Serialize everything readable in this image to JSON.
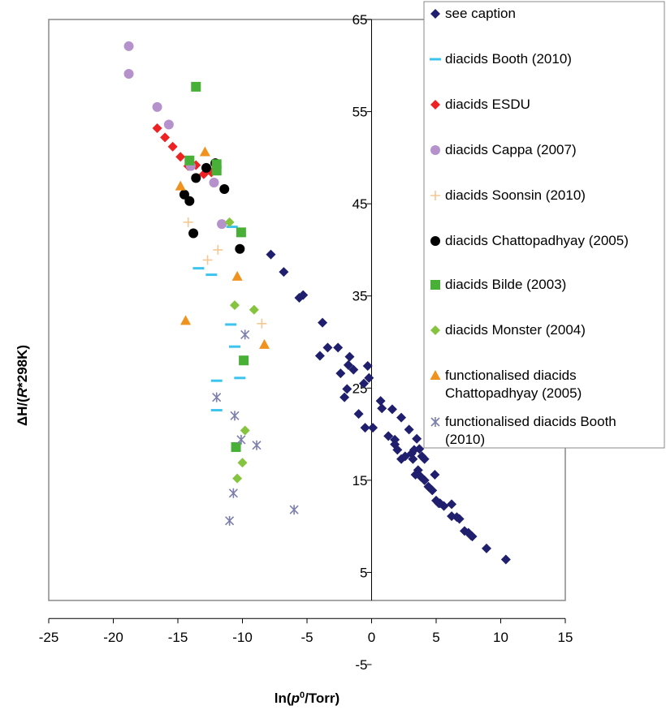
{
  "chart_data": {
    "type": "scatter",
    "xlabel": {
      "pre": "ln(",
      "italic": "p",
      "sup": "0",
      "post": "/Torr)"
    },
    "ylabel": {
      "pre": "ΔH/(",
      "italic": "R",
      "post": "*298K)"
    },
    "xlim": [
      -25,
      15
    ],
    "ylim": [
      -5,
      65
    ],
    "x_ticks": [
      -25,
      -20,
      -15,
      -10,
      -5,
      0,
      5,
      10,
      15
    ],
    "y_ticks": [
      -5,
      5,
      15,
      25,
      35,
      45,
      55,
      65
    ],
    "grid": false,
    "legend_position": "right",
    "series": [
      {
        "name": "see caption",
        "marker": "diamond",
        "color": "#1f1f6e",
        "points": [
          [
            -7.8,
            39.5
          ],
          [
            -6.8,
            37.6
          ],
          [
            -5.6,
            34.8
          ],
          [
            -5.3,
            35.1
          ],
          [
            -3.8,
            32.1
          ],
          [
            -4.0,
            28.5
          ],
          [
            -3.4,
            29.4
          ],
          [
            -2.6,
            29.4
          ],
          [
            -1.7,
            28.4
          ],
          [
            -1.8,
            27.5
          ],
          [
            -1.4,
            27.0
          ],
          [
            -2.4,
            26.6
          ],
          [
            -1.9,
            24.9
          ],
          [
            -2.1,
            24.0
          ],
          [
            -0.2,
            26.1
          ],
          [
            -0.6,
            25.5
          ],
          [
            -1.0,
            22.2
          ],
          [
            -0.5,
            20.7
          ],
          [
            0.1,
            20.7
          ],
          [
            0.7,
            23.6
          ],
          [
            0.8,
            22.8
          ],
          [
            1.3,
            19.8
          ],
          [
            1.8,
            19.4
          ],
          [
            1.8,
            18.9
          ],
          [
            1.6,
            22.7
          ],
          [
            2.3,
            21.8
          ],
          [
            2.0,
            18.3
          ],
          [
            2.3,
            17.3
          ],
          [
            2.6,
            17.6
          ],
          [
            3.1,
            17.9
          ],
          [
            3.2,
            17.3
          ],
          [
            3.3,
            18.3
          ],
          [
            2.9,
            20.5
          ],
          [
            3.5,
            19.5
          ],
          [
            3.7,
            18.4
          ],
          [
            3.9,
            17.6
          ],
          [
            4.1,
            17.3
          ],
          [
            3.6,
            16.1
          ],
          [
            3.4,
            15.6
          ],
          [
            3.8,
            15.4
          ],
          [
            4.1,
            15.0
          ],
          [
            4.4,
            14.3
          ],
          [
            4.9,
            15.6
          ],
          [
            4.7,
            13.9
          ],
          [
            5.0,
            12.8
          ],
          [
            5.3,
            12.5
          ],
          [
            5.6,
            12.2
          ],
          [
            5.2,
            12.5
          ],
          [
            6.2,
            12.4
          ],
          [
            6.2,
            11.1
          ],
          [
            6.6,
            11.0
          ],
          [
            6.8,
            10.8
          ],
          [
            7.2,
            9.5
          ],
          [
            7.5,
            9.3
          ],
          [
            7.7,
            9.0
          ],
          [
            7.8,
            8.9
          ],
          [
            8.9,
            7.6
          ],
          [
            10.4,
            6.4
          ],
          [
            -0.3,
            27.4
          ]
        ]
      },
      {
        "name": "diacids Booth (2010)",
        "marker": "dash",
        "color": "#3cc4ee",
        "points": [
          [
            -13.4,
            38.0
          ],
          [
            -12.4,
            37.3
          ],
          [
            -10.9,
            31.9
          ],
          [
            -10.6,
            29.5
          ],
          [
            -10.2,
            26.1
          ],
          [
            -12.0,
            25.8
          ],
          [
            -12.0,
            22.6
          ],
          [
            -10.8,
            42.5
          ]
        ]
      },
      {
        "name": "diacids ESDU",
        "marker": "diamond",
        "color": "#ee2222",
        "points": [
          [
            -16.6,
            53.2
          ],
          [
            -16.0,
            52.2
          ],
          [
            -15.4,
            51.2
          ],
          [
            -14.8,
            50.1
          ],
          [
            -14.2,
            49.1
          ],
          [
            -13.6,
            49.2
          ],
          [
            -13.0,
            48.2
          ],
          [
            -12.4,
            48.4
          ]
        ]
      },
      {
        "name": "diacids Cappa (2007)",
        "marker": "circle",
        "color": "#b592cc",
        "points": [
          [
            -18.8,
            62.1
          ],
          [
            -18.8,
            59.1
          ],
          [
            -16.6,
            55.5
          ],
          [
            -15.7,
            53.6
          ],
          [
            -14.0,
            49.1
          ],
          [
            -12.2,
            47.3
          ],
          [
            -11.6,
            42.8
          ]
        ]
      },
      {
        "name": "diacids Soonsin (2010)",
        "marker": "plus",
        "color": "#f5c793",
        "points": [
          [
            -14.2,
            43.0
          ],
          [
            -12.7,
            38.9
          ],
          [
            -11.9,
            40.0
          ],
          [
            -8.5,
            32.0
          ]
        ]
      },
      {
        "name": "diacids Chattopadhyay (2005)",
        "marker": "circle",
        "color": "#000000",
        "points": [
          [
            -14.5,
            46.0
          ],
          [
            -14.1,
            45.3
          ],
          [
            -13.8,
            41.8
          ],
          [
            -13.6,
            47.8
          ],
          [
            -12.8,
            48.9
          ],
          [
            -12.1,
            49.4
          ],
          [
            -11.4,
            46.6
          ],
          [
            -10.2,
            40.1
          ]
        ]
      },
      {
        "name": "diacids Bilde (2003)",
        "marker": "square",
        "color": "#49b037",
        "points": [
          [
            -13.6,
            57.7
          ],
          [
            -14.1,
            49.7
          ],
          [
            -12.0,
            49.3
          ],
          [
            -12.0,
            48.6
          ],
          [
            -10.1,
            41.9
          ],
          [
            -9.9,
            28.0
          ],
          [
            -10.5,
            18.6
          ]
        ]
      },
      {
        "name": "diacids Monster (2004)",
        "marker": "diamond",
        "color": "#86c43f",
        "points": [
          [
            -11.0,
            43.0
          ],
          [
            -10.6,
            34.0
          ],
          [
            -9.1,
            33.5
          ],
          [
            -9.8,
            20.4
          ],
          [
            -10.0,
            16.9
          ],
          [
            -10.4,
            15.2
          ]
        ]
      },
      {
        "name": "functionalised diacids\nChattopadhyay (2005)",
        "marker": "triangle",
        "color": "#f0921e",
        "points": [
          [
            -14.8,
            46.9
          ],
          [
            -12.9,
            50.6
          ],
          [
            -10.4,
            37.1
          ],
          [
            -14.4,
            32.3
          ],
          [
            -8.3,
            29.7
          ]
        ]
      },
      {
        "name": "functionalised diacids Booth\n(2010)",
        "marker": "star",
        "color": "#7c7fac",
        "points": [
          [
            -12.0,
            24.0
          ],
          [
            -10.6,
            22.0
          ],
          [
            -9.8,
            30.8
          ],
          [
            -10.1,
            19.4
          ],
          [
            -8.9,
            18.8
          ],
          [
            -10.7,
            13.6
          ],
          [
            -11.0,
            10.6
          ],
          [
            -6.0,
            11.8
          ]
        ]
      }
    ]
  }
}
